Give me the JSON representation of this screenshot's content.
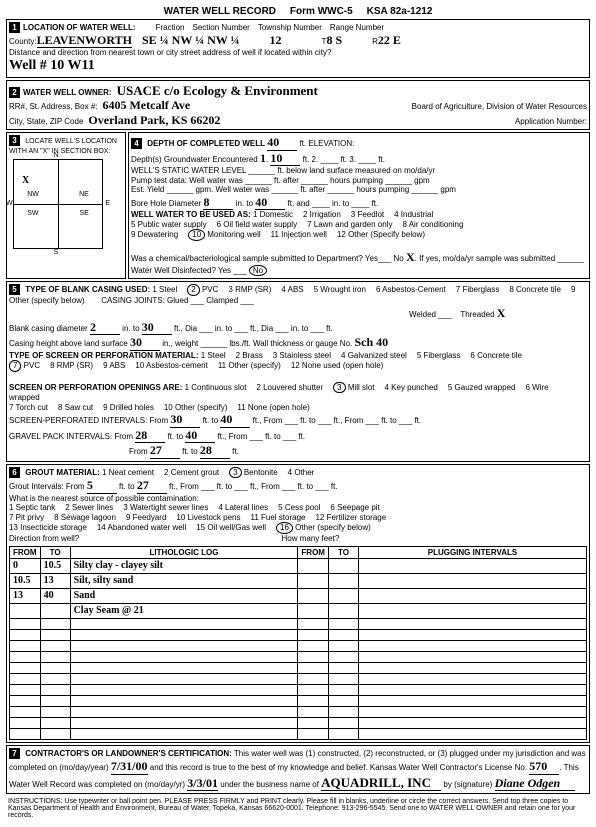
{
  "formTitle": "WATER WELL RECORD",
  "formNum": "Form WWC-5",
  "ksa": "KSA 82a-1212",
  "s1": {
    "label": "LOCATION OF WATER WELL:",
    "county": "LEAVENWORTH",
    "fraction": "SE ¼   NW ¼   NW ¼",
    "sectionNum": "12",
    "township": "8 S",
    "range": "22 E",
    "distanceLabel": "Distance and direction from nearest town or city street address of well if located within city?",
    "distance": "Well # 10 W11"
  },
  "s2": {
    "label": "WATER WELL OWNER:",
    "owner": "USACE c/o Ecology & Environment",
    "addrLabel": "RR#, St. Address, Box #:",
    "addr": "6405 Metcalf Ave",
    "cityLabel": "City, State, ZIP Code",
    "city": "Overland Park, KS 66202",
    "board": "Board of Agriculture, Division of Water Resources",
    "appNum": "Application Number:"
  },
  "s3": {
    "label": "LOCATE WELL'S LOCATION WITH AN \"X\" IN SECTION BOX:",
    "n": "N",
    "s": "S",
    "e": "E",
    "w": "W",
    "nw": "NW",
    "ne": "NE",
    "sw": "SW",
    "se": "SE"
  },
  "s4": {
    "label": "DEPTH OF COMPLETED WELL",
    "depth": "40",
    "elev": "ft. ELEVATION:",
    "gw1": "Depth(s) Groundwater Encountered",
    "gw1v": "1",
    "gw1d": "10",
    "static": "WELL'S STATIC WATER LEVEL",
    "staticNote": "ft. below land surface measured on mo/da/yr",
    "pump": "Pump test data:  Well water was ______ ft. after ______ hours pumping ______ gpm",
    "est": "Est. Yield ______ gpm.   Well water was ______ ft. after ______ hours pumping ______ gpm",
    "bore": "Bore Hole Diameter",
    "boreD": "8",
    "boreTo": "40",
    "useLabel": "WELL WATER TO BE USED AS:",
    "uses": [
      "1 Domestic",
      "2 Irrigation",
      "3 Feedlot",
      "4 Industrial",
      "5 Public water supply",
      "6 Oil field water supply",
      "7 Lawn and garden only",
      "8 Air conditioning",
      "9 Dewatering",
      "10 Monitoring well",
      "11 Injection well",
      "12 Other (Specify below)"
    ],
    "useCircled": "10",
    "chem": "Was a chemical/bacteriological sample submitted to Department? Yes___ No",
    "chemX": "X",
    "chemNote": "If yes, mo/da/yr sample was submitted",
    "disinfect": "Water Well Disinfected? Yes ___",
    "disinfectCircled": "No"
  },
  "s5": {
    "label": "TYPE OF BLANK CASING USED:",
    "casings": [
      "1 Steel",
      "2 PVC",
      "3 RMP (SR)",
      "4 ABS",
      "5 Wrought iron",
      "6 Asbestos-Cement",
      "7 Fiberglass",
      "8 Concrete tile",
      "9 Other (specify below)"
    ],
    "casingCircled": "2",
    "joints": "CASING JOINTS: Glued ___ Clamped ___",
    "welded": "Welded ___",
    "threaded": "Threaded",
    "threadedX": "X",
    "blankDia": "Blank casing diameter",
    "blankDiaV": "2",
    "blankTo": "30",
    "height": "Casing height above land surface",
    "heightV": "30",
    "heightW": "in., weight ______ lbs./ft. Wall thickness or gauge No.",
    "gauge": "Sch 40",
    "screenLabel": "TYPE OF SCREEN OR PERFORATION MATERIAL:",
    "screens": [
      "1 Steel",
      "2 Brass",
      "3 Stainless steel",
      "4 Galvanized steel",
      "5 Fiberglass",
      "6 Concrete tile",
      "7 PVC",
      "8 RMP (SR)",
      "9 ABS",
      "10 Asbestos-cement",
      "11 Other (specify)",
      "12 None used (open hole)"
    ],
    "screenCircled": "7",
    "openLabel": "SCREEN OR PERFORATION OPENINGS ARE:",
    "opens": [
      "1 Continuous slot",
      "2 Louvered shutter",
      "3 Mill slot",
      "4 Key punched",
      "5 Gauzed wrapped",
      "6 Wire wrapped",
      "7 Torch cut",
      "8 Saw cut",
      "9 Drilled holes",
      "10 Other (specify)",
      "11 None (open hole)"
    ],
    "openCircled": "3",
    "perfLabel": "SCREEN-PERFORATED INTERVALS:",
    "perfFrom": "30",
    "perfTo": "40",
    "gravelLabel": "GRAVEL PACK INTERVALS:",
    "gFrom1": "28",
    "gTo1": "40",
    "gFrom2": "27",
    "gTo2": "28"
  },
  "s6": {
    "label": "GROUT MATERIAL:",
    "grouts": [
      "1 Neat cement",
      "2 Cement grout",
      "3 Bentonite",
      "4 Other"
    ],
    "groutCircled": "3",
    "gi": "Grout Intervals:  From",
    "giFrom": "5",
    "giTo": "27",
    "contamLabel": "What is the nearest source of possible contamination:",
    "contams": [
      "1 Septic tank",
      "2 Sewer lines",
      "3 Watertight sewer lines",
      "4 Lateral lines",
      "5 Cess pool",
      "6 Seepage pit",
      "7 Pit privy",
      "8 Sewage lagoon",
      "9 Feedyard",
      "10 Livestock pens",
      "11 Fuel storage",
      "12 Fertilizer storage",
      "13 Insecticide storage",
      "14 Abandoned water well",
      "15 Oil well/Gas well",
      "16 Other (specify below)"
    ],
    "contamCircled": "16",
    "dir": "Direction from well?",
    "feet": "How many feet?",
    "logHead": [
      "FROM",
      "TO",
      "LITHOLOGIC LOG",
      "FROM",
      "TO",
      "PLUGGING INTERVALS"
    ],
    "logRows": [
      [
        "0",
        "10.5",
        "Silty clay - clayey silt",
        "",
        "",
        ""
      ],
      [
        "10.5",
        "13",
        "Silt, silty sand",
        "",
        "",
        ""
      ],
      [
        "13",
        "40",
        "Sand",
        "",
        "",
        ""
      ],
      [
        "",
        "",
        "Clay Seam @ 21",
        "",
        "",
        ""
      ],
      [
        "",
        "",
        "",
        "",
        "",
        ""
      ],
      [
        "",
        "",
        "",
        "",
        "",
        ""
      ],
      [
        "",
        "",
        "",
        "",
        "",
        ""
      ],
      [
        "",
        "",
        "",
        "",
        "",
        ""
      ],
      [
        "",
        "",
        "",
        "",
        "",
        ""
      ],
      [
        "",
        "",
        "",
        "",
        "",
        ""
      ],
      [
        "",
        "",
        "",
        "",
        "",
        ""
      ],
      [
        "",
        "",
        "",
        "",
        "",
        ""
      ],
      [
        "",
        "",
        "",
        "",
        "",
        ""
      ],
      [
        "",
        "",
        "",
        "",
        "",
        ""
      ],
      [
        "",
        "",
        "",
        "",
        "",
        ""
      ]
    ]
  },
  "s7": {
    "label": "CONTRACTOR'S OR LANDOWNER'S CERTIFICATION:",
    "text1": "This water well was (1) constructed, (2) reconstructed, or (3) plugged under my jurisdiction and was completed on (mo/day/year)",
    "date1": "7/31/00",
    "text2": "and this record is true to the best of my knowledge and belief. Kansas Water Well Contractor's License No.",
    "lic": "570",
    "text3": "This Water Well Record was completed on (mo/day/yr)",
    "date2": "3/3/01",
    "bus": "under the business name of",
    "busName": "AQUADRILL, INC",
    "by": "by (signature)",
    "sig": "Diane Odgen"
  },
  "instr": "INSTRUCTIONS: Use typewriter or ball point pen. PLEASE PRESS FIRMLY and PRINT clearly. Please fill in blanks, underline or circle the correct answers. Send top three copies to Kansas Department of Health and Environment, Bureau of Water, Topeka, Kansas 66620-0001. Telephone: 913-296-5545. Send one to WATER WELL OWNER and retain one for your records."
}
